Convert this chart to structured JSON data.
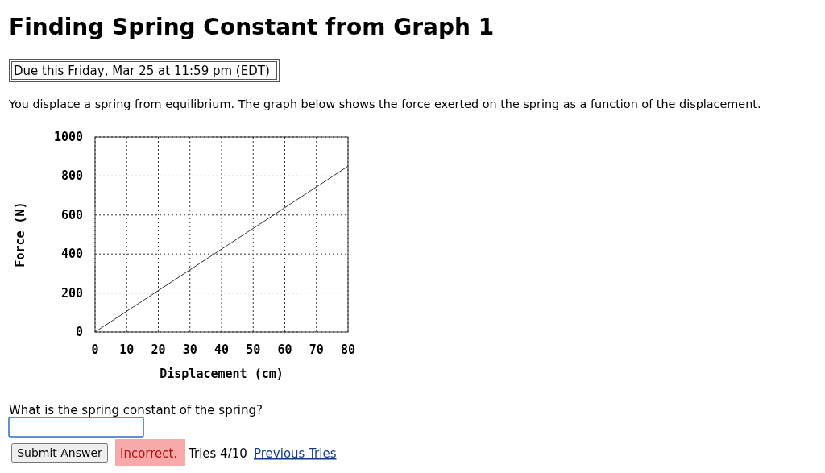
{
  "chart_data": {
    "type": "line",
    "title": "Finding Spring Constant from Graph 1",
    "xlabel": "Displacement (cm)",
    "ylabel": "Force (N)",
    "x": [
      0,
      80
    ],
    "series": [
      {
        "color": "#333333",
        "values": [
          0,
          850
        ]
      }
    ],
    "xlim": [
      0,
      80
    ],
    "xticks": [
      0,
      10,
      20,
      30,
      40,
      50,
      60,
      70,
      80
    ],
    "ylim": [
      0,
      1000
    ],
    "yticks": [
      0,
      200,
      400,
      600,
      800,
      1000
    ],
    "grid": true,
    "marker": "none",
    "line_style": "solid",
    "annotations": [
      "Due this Friday, Mar 25 at 11:59 pm (EDT)",
      "You displace a spring from equilibrium. The graph below shows the force exerted on the spring as a function of the displacement.",
      "What is the spring constant of the spring?",
      "Submit Answer",
      "Incorrect.",
      "Tries 4/10",
      "Previous Tries"
    ]
  }
}
